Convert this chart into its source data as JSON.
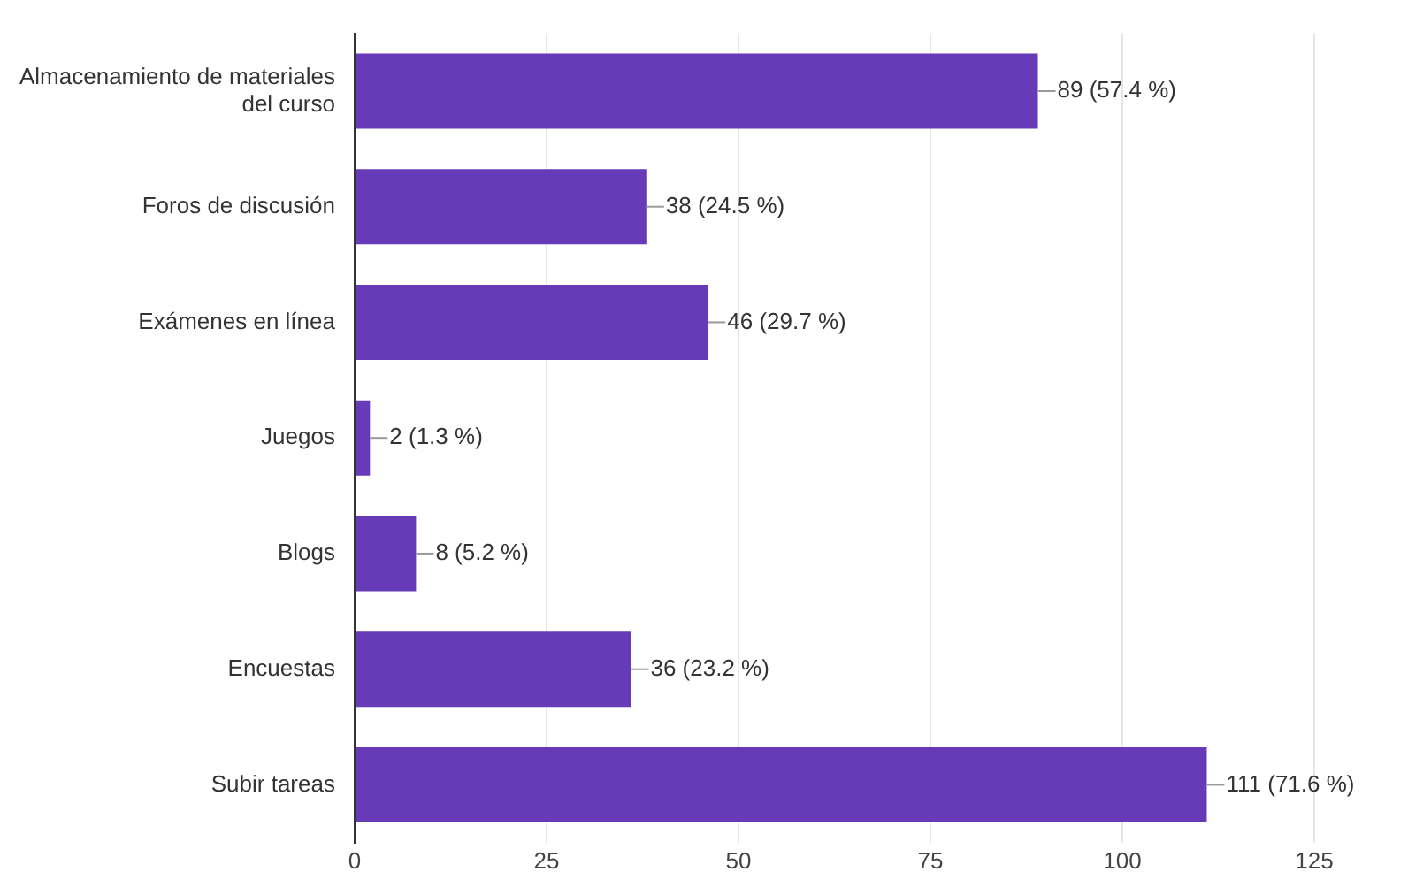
{
  "chart_data": {
    "type": "bar",
    "orientation": "horizontal",
    "categories": [
      "Almacenamiento de materiales del curso",
      "Foros de discusión",
      "Exámenes en línea",
      "Juegos",
      "Blogs",
      "Encuestas",
      "Subir tareas"
    ],
    "values": [
      89,
      38,
      46,
      2,
      8,
      36,
      111
    ],
    "value_labels": [
      "89 (57.4 %)",
      "38 (24.5 %)",
      "46 (29.7 %)",
      "2 (1.3 %)",
      "8 (5.2 %)",
      "36 (23.2 %)",
      "111 (71.6 %)"
    ],
    "color": "#673ab7",
    "xlim": [
      0,
      125
    ],
    "xticks": [
      0,
      25,
      50,
      75,
      100,
      125
    ],
    "grid": "x"
  }
}
